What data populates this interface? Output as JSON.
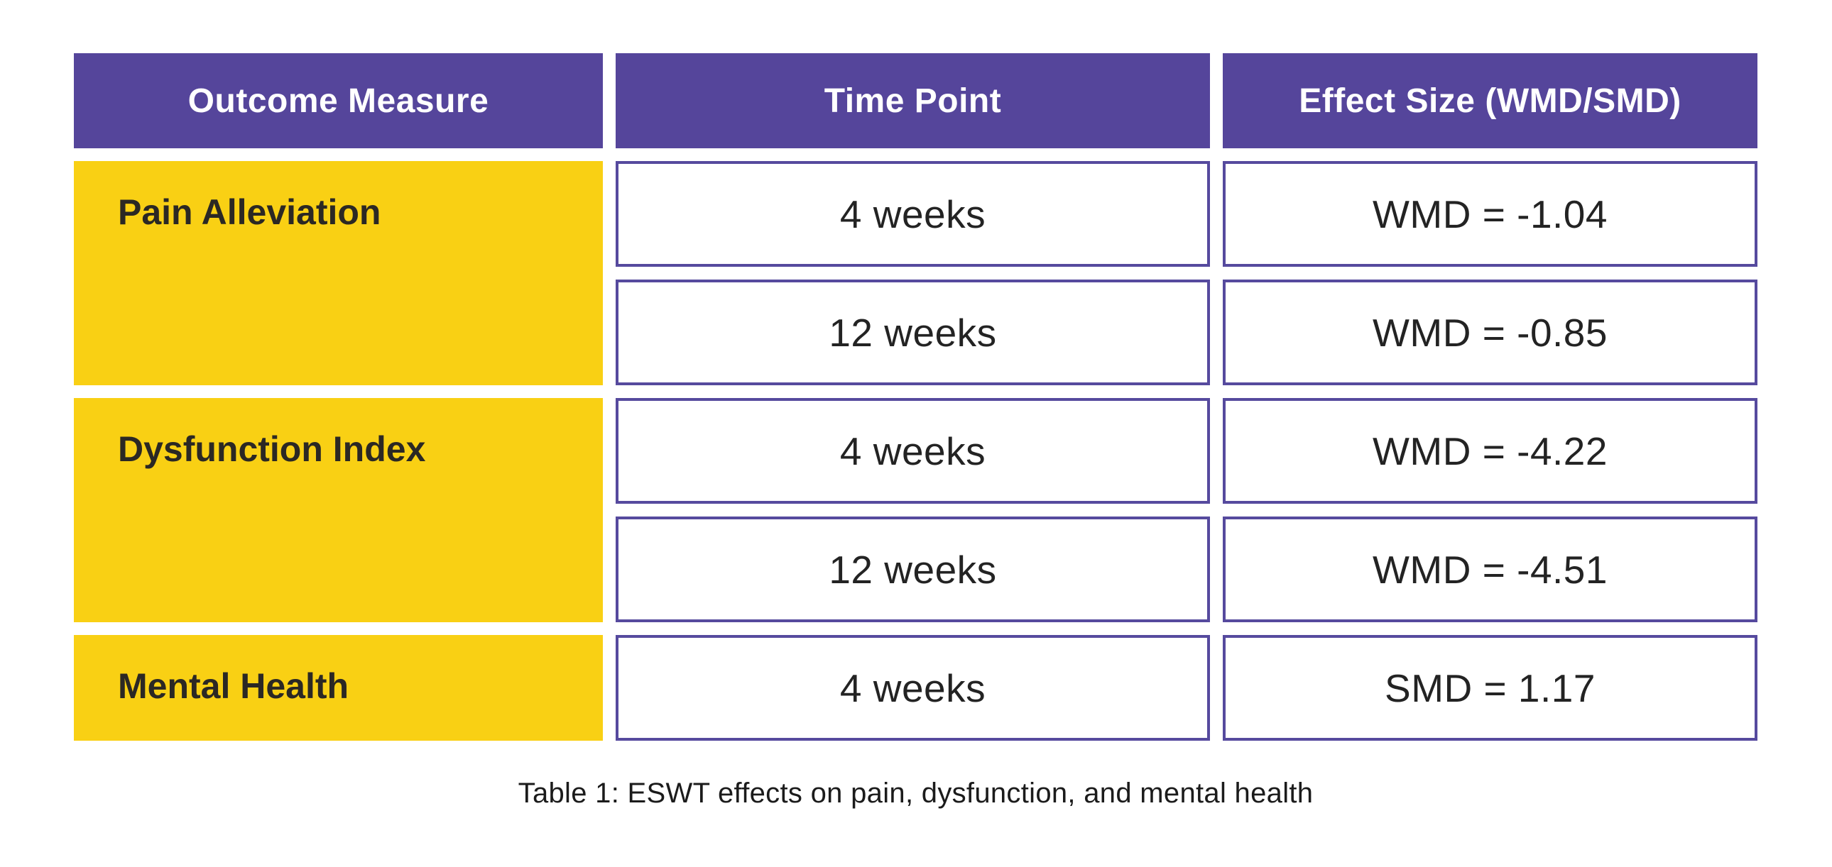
{
  "table": {
    "headers": [
      "Outcome Measure",
      "Time Point",
      "Effect Size (WMD/SMD)"
    ],
    "groups": [
      {
        "outcome": "Pain Alleviation",
        "rows": [
          {
            "time": "4 weeks",
            "effect": "WMD = -1.04"
          },
          {
            "time": "12 weeks",
            "effect": "WMD = -0.85"
          }
        ]
      },
      {
        "outcome": "Dysfunction Index",
        "rows": [
          {
            "time": "4 weeks",
            "effect": "WMD = -4.22"
          },
          {
            "time": "12 weeks",
            "effect": "WMD = -4.51"
          }
        ]
      },
      {
        "outcome": "Mental Health",
        "rows": [
          {
            "time": "4 weeks",
            "effect": "SMD = 1.17"
          }
        ]
      }
    ],
    "caption": "Table 1: ESWT effects on pain, dysfunction, and mental health"
  },
  "colors": {
    "header_bg": "#55459B",
    "outcome_bg": "#F9D014",
    "cell_border": "#564A9E",
    "header_text": "#FFFFFF",
    "outcome_text": "#2B2824",
    "cell_text": "#232323",
    "background": "#FFFFFF"
  },
  "chart_data": {
    "type": "table",
    "title": "Table 1: ESWT effects on pain, dysfunction, and mental health",
    "columns": [
      "Outcome Measure",
      "Time Point",
      "Effect Size (WMD/SMD)"
    ],
    "rows": [
      [
        "Pain Alleviation",
        "4 weeks",
        "WMD = -1.04"
      ],
      [
        "Pain Alleviation",
        "12 weeks",
        "WMD = -0.85"
      ],
      [
        "Dysfunction Index",
        "4 weeks",
        "WMD = -4.22"
      ],
      [
        "Dysfunction Index",
        "12 weeks",
        "WMD = -4.51"
      ],
      [
        "Mental Health",
        "4 weeks",
        "SMD = 1.17"
      ]
    ],
    "numeric_values": [
      -1.04,
      -0.85,
      -4.22,
      -4.51,
      1.17
    ],
    "legend_position": "none",
    "grid": false
  }
}
